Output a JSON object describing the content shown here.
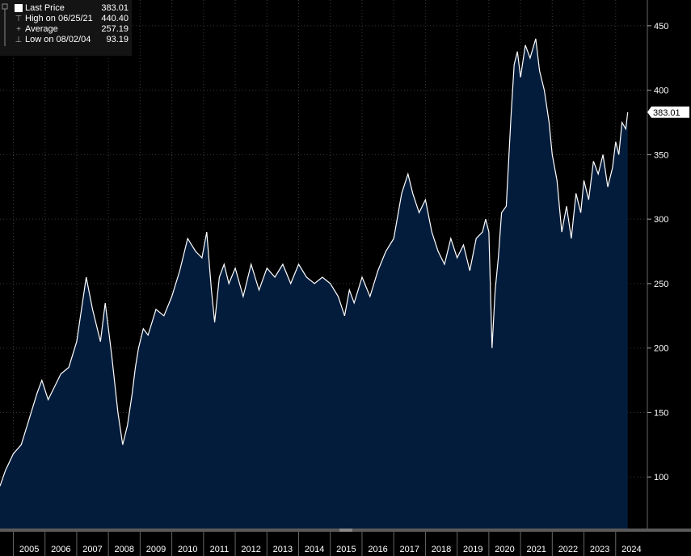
{
  "legend": {
    "items": [
      {
        "label": "Last Price",
        "value": "383.01",
        "marker": "square"
      },
      {
        "label": "High on 06/25/21",
        "value": "440.40",
        "marker": "high-tick"
      },
      {
        "label": "Average",
        "value": "257.19",
        "marker": "plus"
      },
      {
        "label": "Low on 08/02/04",
        "value": "93.19",
        "marker": "low-tick"
      }
    ]
  },
  "last_price_tag": "383.01",
  "colors": {
    "background": "#000000",
    "area_fill": "#041c3c",
    "line": "#ffffff",
    "grid": "#3a3a3a",
    "text": "#ffffff"
  },
  "chart_data": {
    "type": "area",
    "title": "",
    "ylim": [
      60,
      470
    ],
    "y_ticks": [
      100,
      150,
      200,
      250,
      300,
      350,
      400,
      450
    ],
    "x_tick_labels": [
      "2005",
      "2006",
      "2007",
      "2008",
      "2009",
      "2010",
      "2011",
      "2012",
      "2013",
      "2014",
      "2015",
      "2016",
      "2017",
      "2018",
      "2019",
      "2020",
      "2021",
      "2022",
      "2023",
      "2024"
    ],
    "grid": true,
    "y_axis_side": "right",
    "series": [
      {
        "x": [
          2004.58,
          2004.75,
          2005.0,
          2005.25,
          2005.5,
          2005.75,
          2005.9,
          2006.1,
          2006.3,
          2006.5,
          2006.75,
          2007.0,
          2007.3,
          2007.5,
          2007.75,
          2007.9,
          2008.1,
          2008.3,
          2008.45,
          2008.6,
          2008.75,
          2008.85,
          2008.95,
          2009.1,
          2009.25,
          2009.5,
          2009.75,
          2010.0,
          2010.25,
          2010.5,
          2010.75,
          2010.95,
          2011.1,
          2011.25,
          2011.35,
          2011.5,
          2011.65,
          2011.8,
          2012.0,
          2012.25,
          2012.5,
          2012.75,
          2013.0,
          2013.25,
          2013.5,
          2013.75,
          2014.0,
          2014.25,
          2014.5,
          2014.75,
          2015.0,
          2015.25,
          2015.45,
          2015.6,
          2015.75,
          2016.0,
          2016.25,
          2016.5,
          2016.75,
          2017.0,
          2017.25,
          2017.45,
          2017.6,
          2017.8,
          2018.0,
          2018.2,
          2018.4,
          2018.6,
          2018.8,
          2019.0,
          2019.2,
          2019.4,
          2019.6,
          2019.8,
          2019.9,
          2020.0,
          2020.1,
          2020.2,
          2020.3,
          2020.4,
          2020.55,
          2020.7,
          2020.8,
          2020.9,
          2021.0,
          2021.15,
          2021.3,
          2021.48,
          2021.6,
          2021.75,
          2021.9,
          2022.0,
          2022.15,
          2022.3,
          2022.45,
          2022.6,
          2022.75,
          2022.9,
          2023.0,
          2023.15,
          2023.3,
          2023.45,
          2023.6,
          2023.75,
          2023.9,
          2024.0,
          2024.1,
          2024.2,
          2024.32,
          2024.38
        ],
        "values": [
          93,
          105,
          118,
          125,
          145,
          165,
          175,
          160,
          170,
          180,
          185,
          205,
          255,
          230,
          205,
          235,
          195,
          150,
          125,
          140,
          165,
          185,
          200,
          215,
          210,
          230,
          225,
          240,
          260,
          285,
          275,
          270,
          290,
          245,
          220,
          255,
          265,
          250,
          262,
          240,
          265,
          245,
          262,
          255,
          265,
          250,
          265,
          255,
          250,
          255,
          250,
          240,
          225,
          245,
          235,
          255,
          240,
          260,
          275,
          285,
          320,
          335,
          320,
          305,
          315,
          290,
          275,
          265,
          285,
          270,
          280,
          260,
          285,
          290,
          300,
          290,
          200,
          245,
          270,
          305,
          310,
          380,
          420,
          430,
          410,
          435,
          425,
          440,
          415,
          400,
          375,
          350,
          330,
          290,
          310,
          285,
          320,
          305,
          330,
          315,
          345,
          335,
          350,
          325,
          340,
          360,
          350,
          375,
          370,
          383
        ]
      }
    ]
  }
}
